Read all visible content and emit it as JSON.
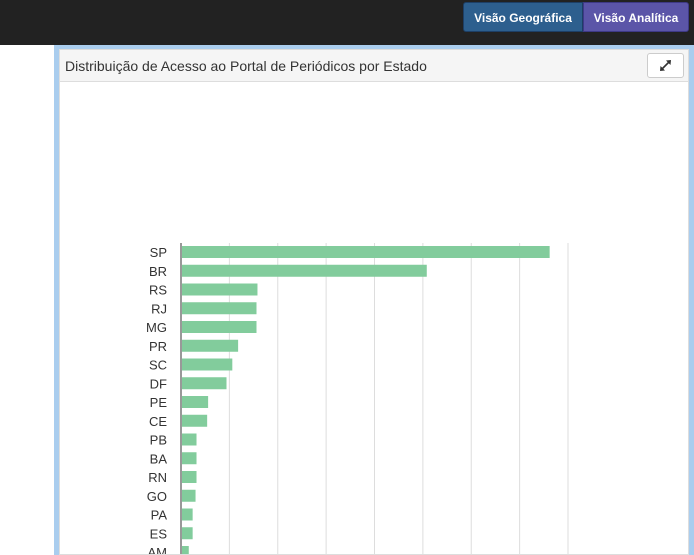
{
  "header": {
    "buttons": [
      {
        "label": "Visão Geográfica",
        "color": "#2d5f8e"
      },
      {
        "label": "Visão Analítica",
        "color": "#5b55a8"
      }
    ]
  },
  "panel": {
    "title": "Distribuição de Acesso ao Portal de Periódicos por Estado",
    "expand_icon": "expand-arrows-icon"
  },
  "chart_data": {
    "type": "bar",
    "orientation": "horizontal",
    "categories": [
      "SP",
      "BR",
      "RS",
      "RJ",
      "MG",
      "PR",
      "SC",
      "DF",
      "PE",
      "CE",
      "PB",
      "BA",
      "RN",
      "GO",
      "PA",
      "ES",
      "AM"
    ],
    "values": [
      7.6,
      5.06,
      1.56,
      1.54,
      1.54,
      1.16,
      1.04,
      0.92,
      0.54,
      0.52,
      0.3,
      0.3,
      0.3,
      0.28,
      0.22,
      0.22,
      0.14
    ],
    "xlim": [
      0,
      8
    ],
    "grid": true,
    "bar_color": "#82cc9c",
    "title": "",
    "xlabel": "",
    "ylabel": ""
  }
}
